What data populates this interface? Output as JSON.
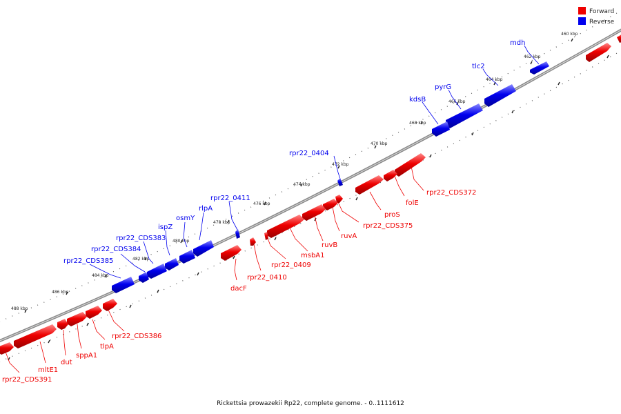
{
  "legend": {
    "forward": {
      "label": "Forward",
      "color": "#ee0000"
    },
    "reverse": {
      "label": "Reverse",
      "color": "#0000ee"
    }
  },
  "caption": "Rickettsia prowazekii Rp22, complete genome. - 0..1111612",
  "tick_labels": [
    "460 kbp",
    "462 kbp",
    "464 kbp",
    "466 kbp",
    "468 kbp",
    "470 kbp",
    "472 kbp",
    "474 kbp",
    "476 kbp",
    "478 kbp",
    "480 kbp",
    "482 kbp",
    "484 kbp",
    "486 kbp",
    "488 kbp"
  ],
  "genes": {
    "reverse": [
      "mdh",
      "tlc2",
      "pyrG",
      "kdsB",
      "rpr22_0404",
      "rpr22_0411",
      "rlpA",
      "osmY",
      "ispZ",
      "rpr22_CDS383",
      "rpr22_CDS384",
      "rpr22_CDS385"
    ],
    "forward": [
      "rpr22_CDS372",
      "folE",
      "proS",
      "rpr22_CDS375",
      "ruvA",
      "ruvB",
      "msbA1",
      "rpr22_0409",
      "rpr22_0410",
      "dacF",
      "rpr22_CDS386",
      "tlpA",
      "sppA1",
      "dut",
      "mltE1",
      "rpr22_CDS391"
    ]
  }
}
